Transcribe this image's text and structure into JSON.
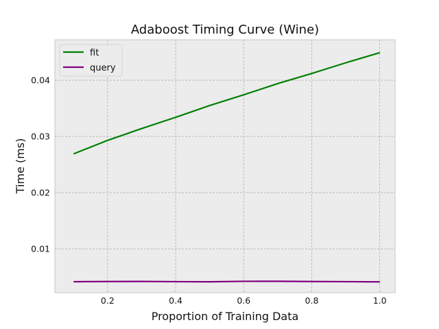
{
  "chart_data": {
    "type": "line",
    "title": "Adaboost Timing Curve (Wine)",
    "xlabel": "Proportion of Training Data",
    "ylabel": "Time (ms)",
    "xlim": [
      0.045,
      1.045
    ],
    "ylim": [
      0.0022,
      0.0472
    ],
    "xticks": [
      0.2,
      0.4,
      0.6,
      0.8,
      1.0
    ],
    "xtick_labels": [
      "0.2",
      "0.4",
      "0.6",
      "0.8",
      "1.0"
    ],
    "yticks": [
      0.01,
      0.02,
      0.03,
      0.04
    ],
    "ytick_labels": [
      "0.01",
      "0.02",
      "0.03",
      "0.04"
    ],
    "grid": true,
    "legend_position": "top-left",
    "x": [
      0.1,
      0.2,
      0.3,
      0.4,
      0.5,
      0.6,
      0.7,
      0.8,
      0.9,
      1.0
    ],
    "series": [
      {
        "name": "fit",
        "color": "#008000",
        "values": [
          0.0269,
          0.0293,
          0.0314,
          0.0334,
          0.0355,
          0.0374,
          0.0394,
          0.0412,
          0.0431,
          0.0449
        ]
      },
      {
        "name": "query",
        "color": "#800080",
        "values": [
          0.00415,
          0.00418,
          0.0042,
          0.00416,
          0.00414,
          0.00422,
          0.00423,
          0.00418,
          0.00416,
          0.00412
        ]
      }
    ]
  }
}
